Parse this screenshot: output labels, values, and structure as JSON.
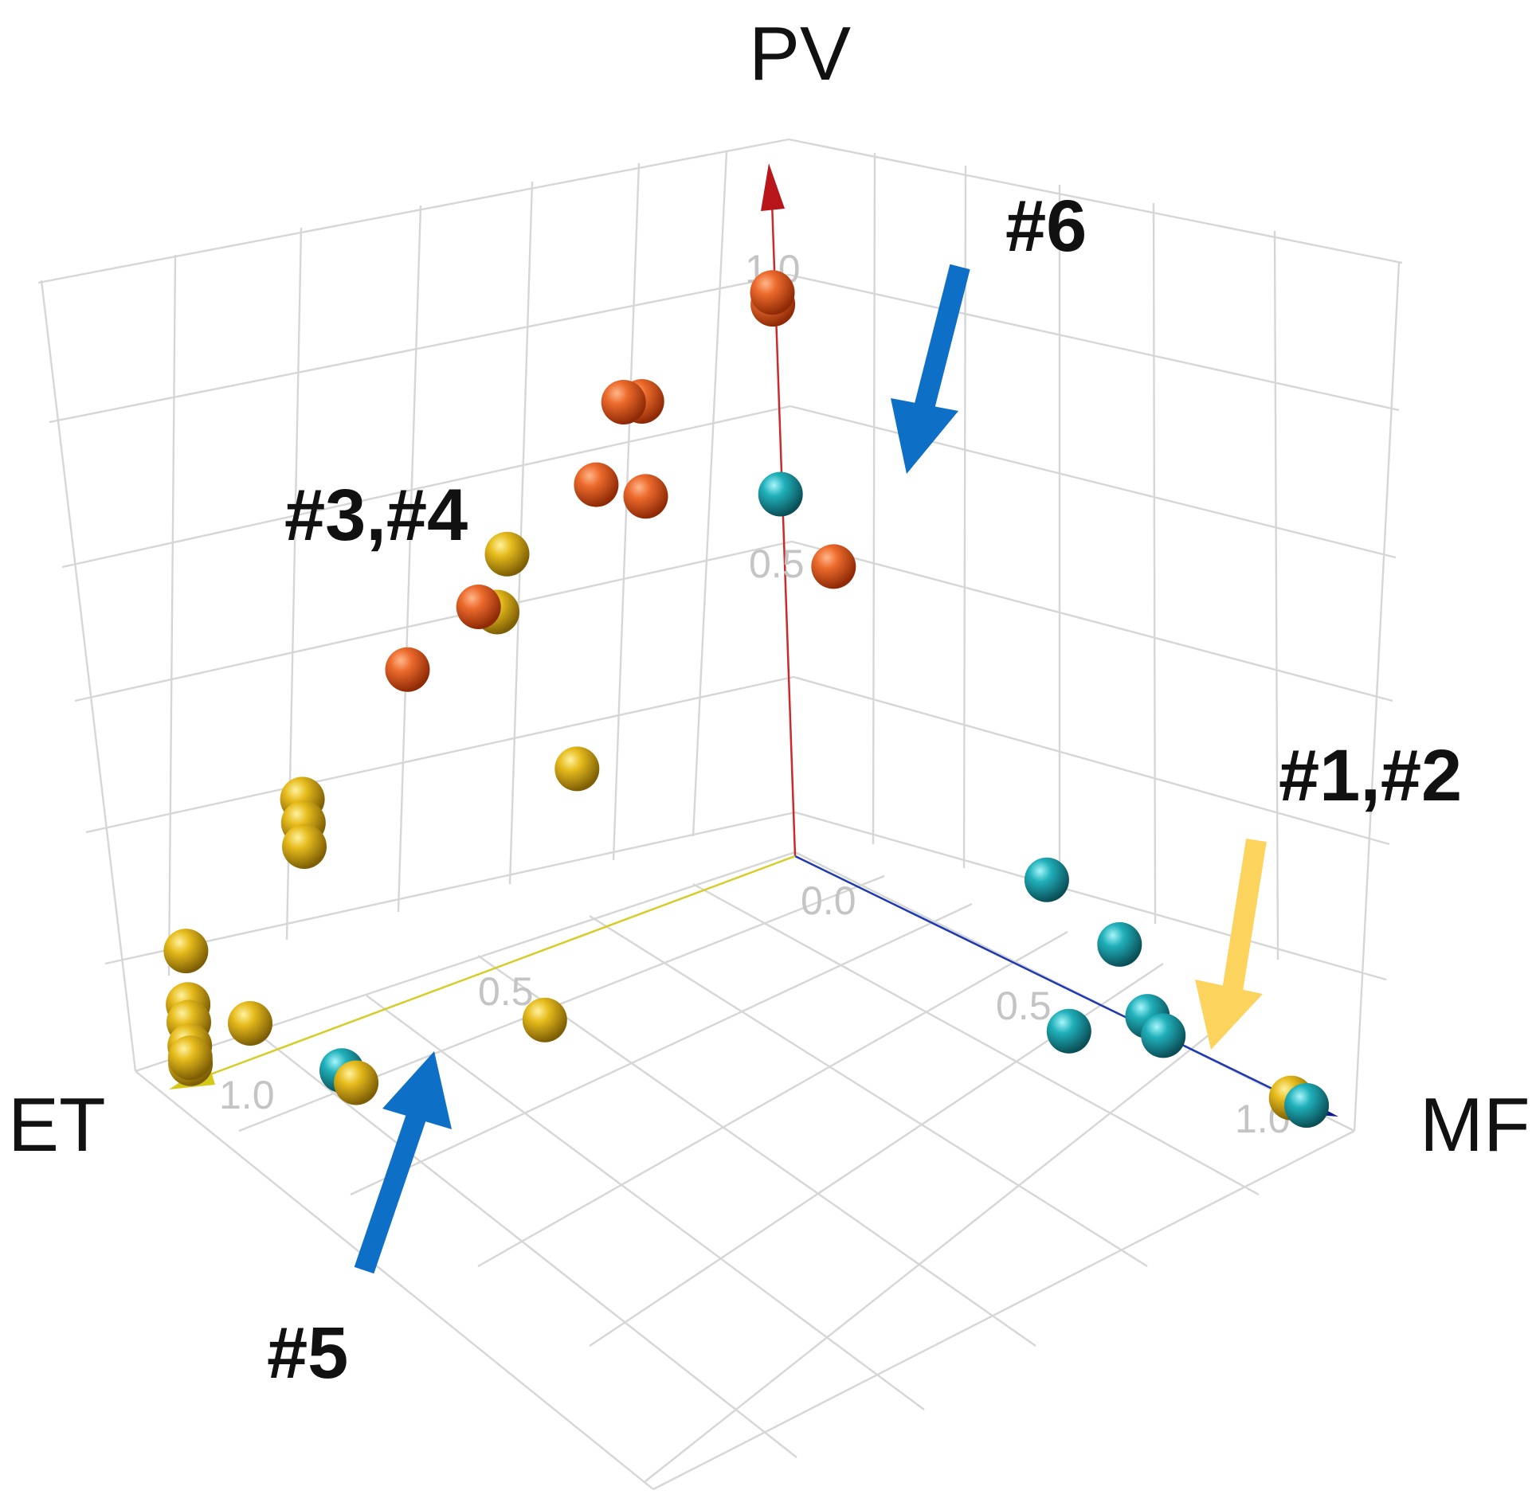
{
  "chart_data": {
    "type": "scatter",
    "axes": {
      "x": {
        "label": "MF",
        "range": [
          0,
          1
        ],
        "ticks": [
          "0.0",
          "0.5",
          "1.0"
        ]
      },
      "y": {
        "label": "ET",
        "range": [
          0,
          1
        ],
        "ticks": [
          "0.5",
          "1.0"
        ]
      },
      "z": {
        "label": "PV",
        "range": [
          0,
          1
        ],
        "ticks": [
          "0.5",
          "1.0"
        ]
      }
    },
    "grid": true,
    "colors": {
      "orange": "#e2531a",
      "yellow": "#e0b616",
      "teal": "#1aa6b0"
    },
    "series": [
      {
        "color_key": "orange",
        "points": [
          {
            "mf": 0.0,
            "et": 0.0,
            "pv": 0.93
          },
          {
            "mf": 0.0,
            "et": 0.0,
            "pv": 0.95
          },
          {
            "mf": 0.0,
            "et": 0.22,
            "pv": 0.85
          },
          {
            "mf": 0.0,
            "et": 0.25,
            "pv": 0.86
          },
          {
            "mf": 0.0,
            "et": 0.3,
            "pv": 0.74
          },
          {
            "mf": 0.0,
            "et": 0.22,
            "pv": 0.69
          },
          {
            "mf": 0.1,
            "et": 0.0,
            "pv": 0.53
          },
          {
            "mf": 0.0,
            "et": 0.5,
            "pv": 0.61
          },
          {
            "mf": 0.0,
            "et": 0.62,
            "pv": 0.55
          }
        ]
      },
      {
        "color_key": "yellow",
        "points": [
          {
            "mf": 0.0,
            "et": 0.45,
            "pv": 0.68
          },
          {
            "mf": 0.0,
            "et": 0.47,
            "pv": 0.59
          },
          {
            "mf": 0.0,
            "et": 0.35,
            "pv": 0.28
          },
          {
            "mf": 0.0,
            "et": 0.8,
            "pv": 0.4
          },
          {
            "mf": 0.0,
            "et": 0.8,
            "pv": 0.36
          },
          {
            "mf": 0.0,
            "et": 0.8,
            "pv": 0.32
          },
          {
            "mf": 0.0,
            "et": 1.0,
            "pv": 0.22
          },
          {
            "mf": 0.0,
            "et": 1.0,
            "pv": 0.13
          },
          {
            "mf": 0.0,
            "et": 1.0,
            "pv": 0.1
          },
          {
            "mf": 0.0,
            "et": 1.0,
            "pv": 0.06
          },
          {
            "mf": 0.0,
            "et": 1.0,
            "pv": 0.03
          },
          {
            "mf": 0.0,
            "et": 1.0,
            "pv": 0.04
          },
          {
            "mf": 0.0,
            "et": 0.9,
            "pv": 0.06
          },
          {
            "mf": 0.17,
            "et": 0.87,
            "pv": 0.02
          },
          {
            "mf": 0.16,
            "et": 0.55,
            "pv": 0.0
          },
          {
            "mf": 1.0,
            "et": 0.0,
            "pv": 0.0
          },
          {
            "mf": 0.97,
            "et": 0.0,
            "pv": 0.0
          }
        ]
      },
      {
        "color_key": "teal",
        "points": [
          {
            "mf": 0.0,
            "et": 0.0,
            "pv": 0.61
          },
          {
            "mf": 0.5,
            "et": 0.0,
            "pv": 0.17
          },
          {
            "mf": 0.64,
            "et": 0.0,
            "pv": 0.12
          },
          {
            "mf": 0.69,
            "et": 0.0,
            "pv": 0.02
          },
          {
            "mf": 0.72,
            "et": 0.0,
            "pv": 0.0
          },
          {
            "mf": 0.63,
            "et": 0.08,
            "pv": 0.0
          },
          {
            "mf": 1.0,
            "et": 0.0,
            "pv": 0.0
          },
          {
            "mf": 0.13,
            "et": 0.86,
            "pv": 0.02
          }
        ]
      }
    ],
    "annotations": [
      {
        "text": "#6"
      },
      {
        "text": "#3,#4"
      },
      {
        "text": "#1,#2"
      },
      {
        "text": "#5"
      }
    ],
    "arrow_colors": {
      "blue": "#0d6fc6",
      "yellow": "#fcd35c"
    },
    "axis_colors": {
      "mf": "#1f3ab0",
      "et": "#d6cc2a",
      "pv": "#cc2a2a"
    }
  }
}
